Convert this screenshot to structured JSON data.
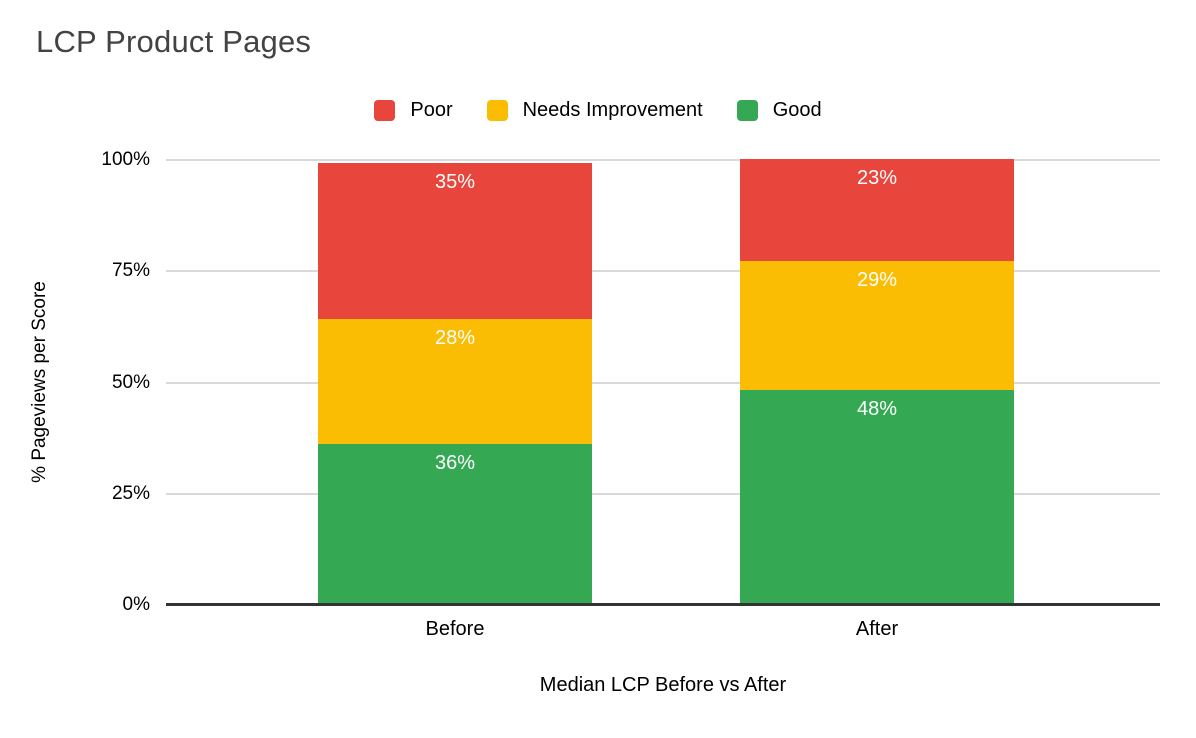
{
  "chart_data": {
    "type": "bar",
    "stacked": true,
    "title": "LCP Product Pages",
    "xlabel": "Median LCP Before vs After",
    "ylabel": "% Pageviews per Score",
    "categories": [
      "Before",
      "After"
    ],
    "series": [
      {
        "name": "Poor",
        "color": "#e8453c",
        "values": [
          35,
          23
        ]
      },
      {
        "name": "Needs Improvement",
        "color": "#fbbc04",
        "values": [
          28,
          29
        ]
      },
      {
        "name": "Good",
        "color": "#34a853",
        "values": [
          36,
          48
        ]
      }
    ],
    "data_labels": {
      "Before": [
        "35%",
        "28%",
        "36%"
      ],
      "After": [
        "23%",
        "29%",
        "48%"
      ]
    },
    "ylim": [
      0,
      100
    ],
    "yticks": [
      {
        "label": "0%",
        "value": 0
      },
      {
        "label": "25%",
        "value": 25
      },
      {
        "label": "50%",
        "value": 50
      },
      {
        "label": "75%",
        "value": 75
      },
      {
        "label": "100%",
        "value": 100
      }
    ],
    "grid": true,
    "legend_position": "top",
    "colors": {
      "gridline": "#d9d9d9",
      "axis_line": "#333333",
      "title_text": "#434343",
      "label_text": "#000000",
      "data_label_text": "#ffffff",
      "background": "#ffffff"
    }
  }
}
